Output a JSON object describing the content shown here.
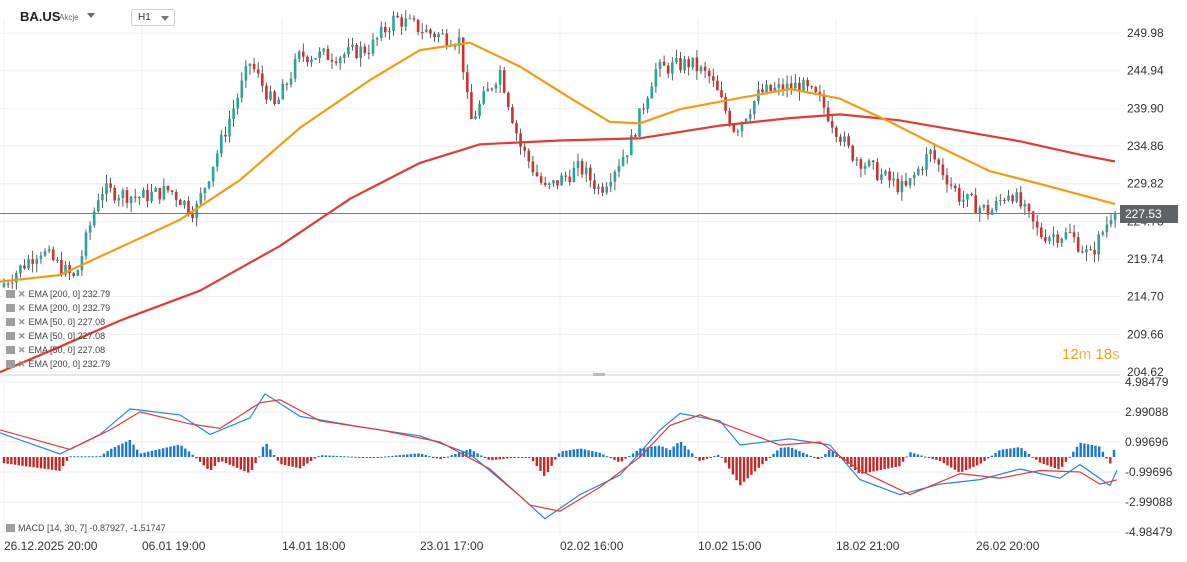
{
  "header": {
    "symbol": "BA.US",
    "asset_class": "Akcje",
    "timeframe": "H1"
  },
  "price_axis": {
    "labels": [
      "249.98",
      "244.94",
      "239.90",
      "234.86",
      "229.82",
      "224.78",
      "219.74",
      "214.70",
      "209.66",
      "204.62"
    ],
    "current_price": "227.53"
  },
  "macd_axis": {
    "labels": [
      "4.98479",
      "2.99088",
      "0.99696",
      "-0.99696",
      "-2.99088",
      "-4.98479"
    ]
  },
  "time_axis": {
    "labels": [
      "26.12.2025  20:00",
      "06.01  19:00",
      "14.01  18:00",
      "23.01  17:00",
      "02.02  16:00",
      "10.02  15:00",
      "18.02  21:00",
      "26.02  20:00"
    ]
  },
  "legend": {
    "items": [
      "EMA [200,  0] 232.79",
      "EMA [200,  0] 232.79",
      "EMA [50,  0] 227.08",
      "EMA [50,  0] 227.08",
      "EMA [50,  0] 227.08",
      "EMA [200,  0] 232.79"
    ]
  },
  "macd_legend": "MACD [14, 30, 7] -0.87927,  -1.51747",
  "timer": {
    "minutes": "12",
    "m": "m",
    "seconds": "18",
    "s": "s"
  },
  "chart_data": {
    "type": "line",
    "title": "",
    "series": [
      {
        "name": "EMA [200, 0]",
        "color": "#e53935",
        "points": [
          [
            0,
            204.6
          ],
          [
            60,
            208
          ],
          [
            120,
            211.5
          ],
          [
            200,
            215.5
          ],
          [
            280,
            221.5
          ],
          [
            350,
            227.8
          ],
          [
            420,
            232.6
          ],
          [
            480,
            235.1
          ],
          [
            560,
            235.6
          ],
          [
            640,
            235.9
          ],
          [
            720,
            237.6
          ],
          [
            790,
            238.6
          ],
          [
            840,
            239.1
          ],
          [
            900,
            238.3
          ],
          [
            960,
            236.9
          ],
          [
            1020,
            235.5
          ],
          [
            1080,
            233.7
          ],
          [
            1115,
            232.8
          ]
        ]
      },
      {
        "name": "EMA [50, 0]",
        "color": "#f39c12",
        "points": [
          [
            0,
            216.7
          ],
          [
            60,
            217.6
          ],
          [
            120,
            221.3
          ],
          [
            180,
            225
          ],
          [
            240,
            230.3
          ],
          [
            300,
            237.3
          ],
          [
            370,
            243.7
          ],
          [
            420,
            247.7
          ],
          [
            470,
            248.7
          ],
          [
            520,
            245.5
          ],
          [
            570,
            241.3
          ],
          [
            610,
            238.1
          ],
          [
            640,
            237.9
          ],
          [
            680,
            239.8
          ],
          [
            740,
            241.3
          ],
          [
            790,
            242.5
          ],
          [
            840,
            241.2
          ],
          [
            890,
            238.1
          ],
          [
            940,
            234.7
          ],
          [
            990,
            231.5
          ],
          [
            1040,
            229.8
          ],
          [
            1090,
            228
          ],
          [
            1115,
            227.1
          ]
        ]
      },
      {
        "name": "MACD",
        "color": "#1e88e5",
        "points": [
          [
            0,
            1.6
          ],
          [
            60,
            0.2
          ],
          [
            100,
            1.5
          ],
          [
            130,
            3.2
          ],
          [
            180,
            2.8
          ],
          [
            210,
            1.5
          ],
          [
            250,
            2.6
          ],
          [
            265,
            4.2
          ],
          [
            300,
            2.7
          ],
          [
            360,
            2.0
          ],
          [
            420,
            1.4
          ],
          [
            470,
            0.2
          ],
          [
            520,
            -2.6
          ],
          [
            545,
            -4.1
          ],
          [
            580,
            -2.5
          ],
          [
            620,
            -1.2
          ],
          [
            660,
            1.8
          ],
          [
            680,
            2.9
          ],
          [
            720,
            2.4
          ],
          [
            740,
            0.8
          ],
          [
            790,
            1.2
          ],
          [
            830,
            0.8
          ],
          [
            860,
            -1.5
          ],
          [
            900,
            -2.5
          ],
          [
            940,
            -1.8
          ],
          [
            980,
            -1.5
          ],
          [
            1020,
            -0.8
          ],
          [
            1060,
            -1.4
          ],
          [
            1080,
            -0.5
          ],
          [
            1110,
            -1.9
          ],
          [
            1117,
            -0.87927
          ]
        ]
      },
      {
        "name": "Signal",
        "color": "#e53935",
        "points": [
          [
            0,
            1.8
          ],
          [
            70,
            0.5
          ],
          [
            110,
            1.8
          ],
          [
            140,
            3.0
          ],
          [
            190,
            2.2
          ],
          [
            220,
            1.9
          ],
          [
            260,
            3.6
          ],
          [
            280,
            3.8
          ],
          [
            320,
            2.4
          ],
          [
            380,
            1.8
          ],
          [
            440,
            1.0
          ],
          [
            490,
            -0.8
          ],
          [
            530,
            -3.2
          ],
          [
            560,
            -3.6
          ],
          [
            600,
            -2.0
          ],
          [
            640,
            0.0
          ],
          [
            670,
            2.1
          ],
          [
            700,
            2.8
          ],
          [
            740,
            1.8
          ],
          [
            780,
            0.8
          ],
          [
            820,
            1.0
          ],
          [
            860,
            -0.9
          ],
          [
            910,
            -2.5
          ],
          [
            960,
            -1.1
          ],
          [
            1000,
            -1.4
          ],
          [
            1040,
            -0.9
          ],
          [
            1080,
            -1.0
          ],
          [
            1100,
            -1.8
          ],
          [
            1117,
            -1.51747
          ]
        ]
      }
    ],
    "current_price": 227.53,
    "ylim": [
      204.62,
      252.0
    ],
    "macd_ylim": [
      -4.98479,
      4.98479
    ],
    "candle_up_color": "#26a69a",
    "candle_down_color": "#d32f2f"
  }
}
